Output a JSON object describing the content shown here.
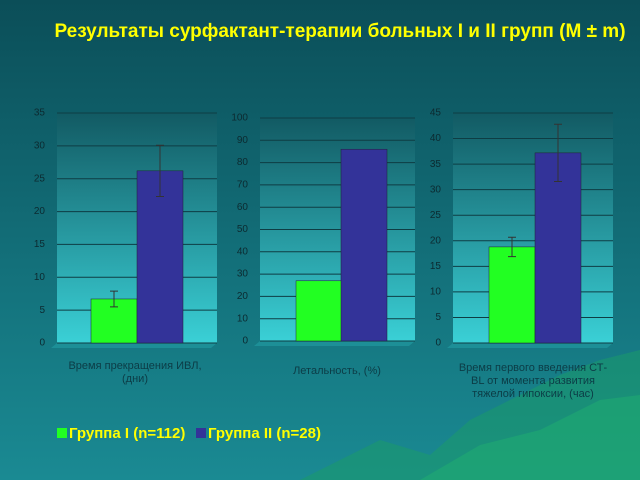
{
  "title": "Результаты сурфактант-терапии больных I и II групп (M ± m)",
  "legend": [
    {
      "name": "Группа I (n=112)",
      "color": "#22ff22"
    },
    {
      "name": "Группа II (n=28)",
      "color": "#333399"
    }
  ],
  "chart_data": [
    {
      "type": "bar",
      "xlabel": "Время прекращения ИВЛ, (дни)",
      "ylim": [
        0,
        35
      ],
      "yticks": [
        0,
        5,
        10,
        15,
        20,
        25,
        30,
        35
      ],
      "grid": true,
      "series": [
        {
          "values": [
            6.7
          ],
          "errors": [
            1.2
          ]
        },
        {
          "values": [
            26.2
          ],
          "errors": [
            3.9
          ]
        }
      ]
    },
    {
      "type": "bar",
      "xlabel": "Летальность, (%)",
      "ylim": [
        0,
        100
      ],
      "yticks": [
        0,
        10,
        20,
        30,
        40,
        50,
        60,
        70,
        80,
        90,
        100
      ],
      "grid": true,
      "series": [
        {
          "values": [
            27
          ]
        },
        {
          "values": [
            86
          ]
        }
      ]
    },
    {
      "type": "bar",
      "xlabel": "Время первого введения СТ-BL от момента развития тяжелой гипоксии, (час)",
      "ylim": [
        0,
        45
      ],
      "yticks": [
        0,
        5,
        10,
        15,
        20,
        25,
        30,
        35,
        40,
        45
      ],
      "grid": true,
      "series": [
        {
          "values": [
            18.8
          ],
          "errors": [
            1.9
          ]
        },
        {
          "values": [
            37.2
          ],
          "errors": [
            5.6
          ]
        }
      ]
    }
  ]
}
